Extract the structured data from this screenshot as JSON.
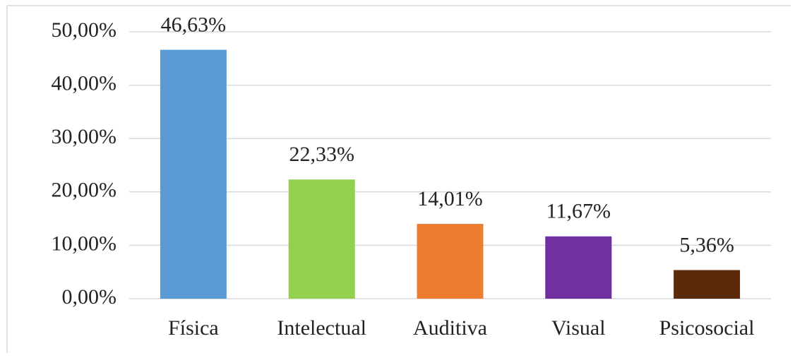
{
  "chart_data": {
    "type": "bar",
    "categories": [
      "Física",
      "Intelectual",
      "Auditiva",
      "Visual",
      "Psicosocial"
    ],
    "values": [
      46.63,
      22.33,
      14.01,
      11.67,
      5.36
    ],
    "value_labels": [
      "46,63%",
      "22,33%",
      "14,01%",
      "11,67%",
      "5,36%"
    ],
    "colors": [
      "#5b9bd5",
      "#92d050",
      "#ed7d31",
      "#7030a0",
      "#5a2a0a"
    ],
    "ylim": [
      0,
      50
    ],
    "yticks": [
      {
        "value": 0,
        "label": "0,00%"
      },
      {
        "value": 10,
        "label": "10,00%"
      },
      {
        "value": 20,
        "label": "20,00%"
      },
      {
        "value": 30,
        "label": "30,00%"
      },
      {
        "value": 40,
        "label": "40,00%"
      },
      {
        "value": 50,
        "label": "50,00%"
      }
    ],
    "grid": true
  }
}
